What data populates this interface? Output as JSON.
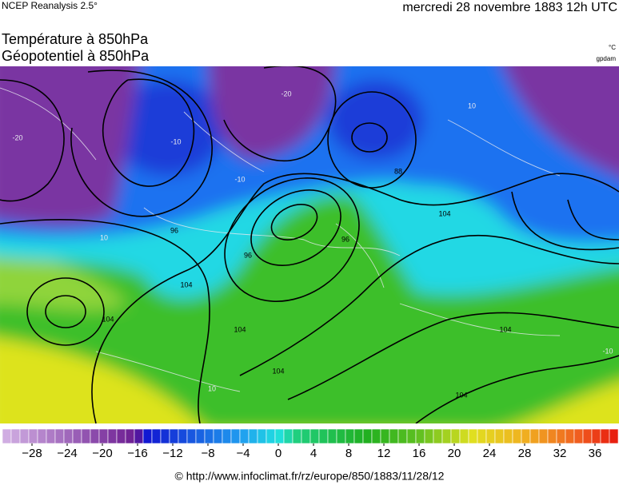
{
  "header": {
    "source": "NCEP Reanalysis 2.5°",
    "date": "mercredi 28 novembre 1883 12h UTC"
  },
  "titles": [
    "Température à 850hPa",
    "Géopotentiel à 850hPa"
  ],
  "units": [
    "°C",
    "gpdam"
  ],
  "contour_labels": [
    "-20",
    "-10",
    "-10",
    "-20",
    "10",
    "10",
    "96",
    "96",
    "88",
    "96",
    "104",
    "104",
    "104",
    "104",
    "104",
    "104",
    "104",
    "-10",
    "10"
  ],
  "colorbar": {
    "ticks": [
      {
        "value": -28,
        "label": "−28"
      },
      {
        "value": -24,
        "label": "−24"
      },
      {
        "value": -20,
        "label": "−20"
      },
      {
        "value": -16,
        "label": "−16"
      },
      {
        "value": -12,
        "label": "−12"
      },
      {
        "value": -8,
        "label": "−8"
      },
      {
        "value": -4,
        "label": "−4"
      },
      0,
      4,
      8,
      12,
      16,
      20,
      24,
      28,
      32,
      36
    ]
  },
  "footer": "© http://www.infoclimat.fr/rz/europe/850/1883/11/28/12"
}
